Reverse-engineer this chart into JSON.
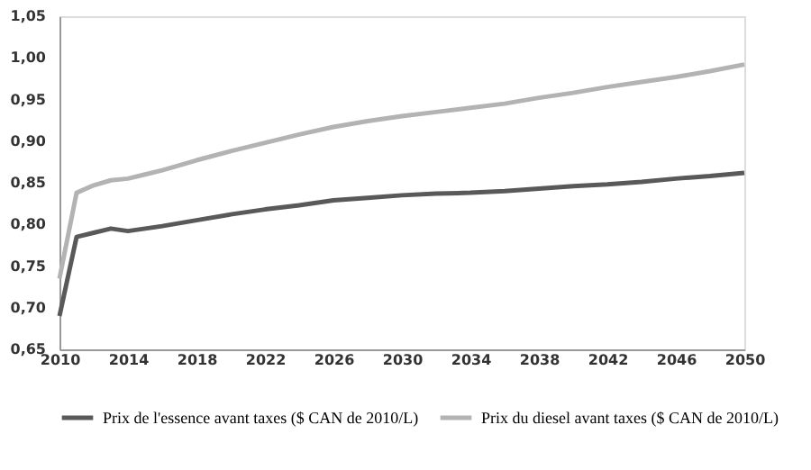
{
  "chart_data": {
    "type": "line",
    "x": [
      2010,
      2011,
      2012,
      2013,
      2014,
      2015,
      2016,
      2018,
      2020,
      2022,
      2024,
      2026,
      2028,
      2030,
      2032,
      2034,
      2036,
      2038,
      2040,
      2042,
      2044,
      2046,
      2048,
      2050
    ],
    "series": [
      {
        "name": "Prix de l'essence avant taxes ($ CAN de 2010/L)",
        "color": "#595959",
        "values": [
          0.69,
          0.785,
          0.79,
          0.795,
          0.792,
          0.795,
          0.798,
          0.805,
          0.812,
          0.818,
          0.823,
          0.829,
          0.832,
          0.835,
          0.837,
          0.838,
          0.84,
          0.843,
          0.846,
          0.848,
          0.851,
          0.855,
          0.858,
          0.862
        ]
      },
      {
        "name": "Prix du diesel avant taxes ($ CAN de 2010/L)",
        "color": "#b3b3b3",
        "values": [
          0.735,
          0.838,
          0.847,
          0.853,
          0.855,
          0.86,
          0.865,
          0.877,
          0.888,
          0.898,
          0.908,
          0.917,
          0.924,
          0.93,
          0.935,
          0.94,
          0.945,
          0.952,
          0.958,
          0.965,
          0.971,
          0.977,
          0.984,
          0.992
        ]
      }
    ],
    "xlim": [
      2010,
      2050
    ],
    "xticks": [
      2010,
      2014,
      2018,
      2022,
      2026,
      2030,
      2034,
      2038,
      2042,
      2046,
      2050
    ],
    "ylim": [
      0.65,
      1.05
    ],
    "yticks": [
      {
        "value": 0.65,
        "label": "0,65"
      },
      {
        "value": 0.7,
        "label": "0,70"
      },
      {
        "value": 0.75,
        "label": "0,75"
      },
      {
        "value": 0.8,
        "label": "0,80"
      },
      {
        "value": 0.85,
        "label": "0,85"
      },
      {
        "value": 0.9,
        "label": "0,90"
      },
      {
        "value": 0.95,
        "label": "0,95"
      },
      {
        "value": 1.0,
        "label": "1,00"
      },
      {
        "value": 1.05,
        "label": "1,05"
      }
    ],
    "grid": false,
    "legend": "bottom",
    "marker": "none",
    "line_style": "solid"
  }
}
